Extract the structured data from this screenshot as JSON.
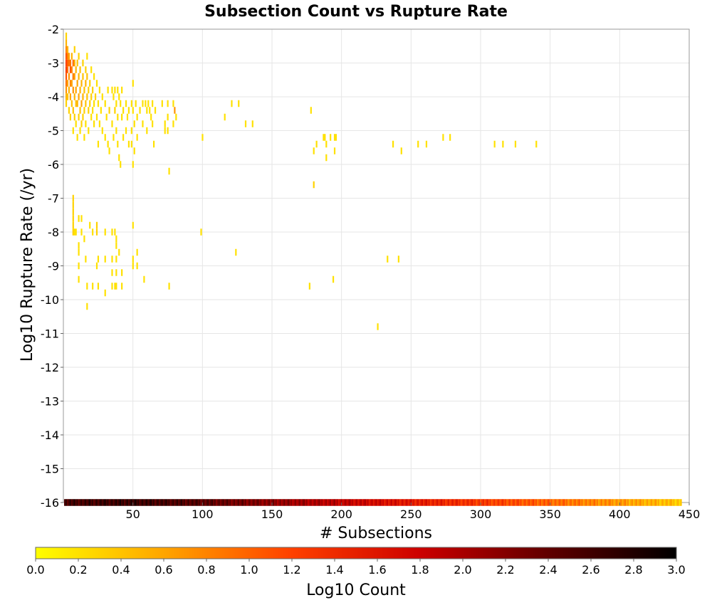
{
  "chart_data": {
    "type": "heatmap",
    "title": "Subsection Count vs Rupture Rate",
    "xlabel": "# Subsections",
    "ylabel": "Log10 Rupture Rate (/yr)",
    "xlim": [
      0,
      450
    ],
    "ylim": [
      -16,
      -2
    ],
    "x_ticks": [
      50,
      100,
      150,
      200,
      250,
      300,
      350,
      400,
      450
    ],
    "y_ticks": [
      -2,
      -3,
      -4,
      -5,
      -6,
      -7,
      -8,
      -9,
      -10,
      -11,
      -12,
      -13,
      -14,
      -15,
      -16
    ],
    "grid": true,
    "colorbar": {
      "label": "Log10 Count",
      "range": [
        0.0,
        3.0
      ],
      "ticks": [
        "0.0",
        "0.2",
        "0.4",
        "0.6",
        "0.8",
        "1.0",
        "1.2",
        "1.4",
        "1.6",
        "1.8",
        "2.0",
        "2.2",
        "2.4",
        "2.6",
        "2.8",
        "3.0"
      ],
      "colors": [
        "#ffff00",
        "#ffa500",
        "#ff4000",
        "#cc0000",
        "#600000",
        "#000000"
      ]
    },
    "bin_width": 1,
    "bin_height": 0.2,
    "upper_cells": [
      [
        2,
        -2.2,
        0.3
      ],
      [
        2,
        -2.4,
        0.5
      ],
      [
        2,
        -2.6,
        0.8
      ],
      [
        2,
        -2.8,
        1.1
      ],
      [
        2,
        -3.0,
        1.2
      ],
      [
        2,
        -3.2,
        1.3
      ],
      [
        2,
        -3.4,
        1.1
      ],
      [
        2,
        -3.6,
        0.9
      ],
      [
        2,
        -3.8,
        0.7
      ],
      [
        2,
        -4.0,
        0.5
      ],
      [
        2,
        -4.2,
        0.3
      ],
      [
        3,
        -2.6,
        0.5
      ],
      [
        3,
        -2.8,
        0.8
      ],
      [
        3,
        -3.0,
        1.0
      ],
      [
        3,
        -3.2,
        0.9
      ],
      [
        3,
        -3.6,
        0.6
      ],
      [
        3,
        -4.0,
        0.4
      ],
      [
        4,
        -2.8,
        0.6
      ],
      [
        4,
        -3.0,
        0.9
      ],
      [
        4,
        -3.4,
        0.7
      ],
      [
        4,
        -3.8,
        0.5
      ],
      [
        4,
        -4.4,
        0.3
      ],
      [
        5,
        -3.0,
        0.9
      ],
      [
        5,
        -3.2,
        1.1
      ],
      [
        5,
        -3.6,
        0.8
      ],
      [
        5,
        -4.0,
        0.6
      ],
      [
        5,
        -4.6,
        0.3
      ],
      [
        6,
        -2.8,
        0.5
      ],
      [
        6,
        -3.2,
        0.8
      ],
      [
        6,
        -3.6,
        0.6
      ],
      [
        6,
        -4.2,
        0.4
      ],
      [
        7,
        -3.0,
        1.0
      ],
      [
        7,
        -3.4,
        0.9
      ],
      [
        7,
        -3.8,
        0.7
      ],
      [
        7,
        -4.4,
        0.4
      ],
      [
        7,
        -5.0,
        0.2
      ],
      [
        8,
        -2.6,
        0.3
      ],
      [
        8,
        -3.0,
        0.5
      ],
      [
        8,
        -3.4,
        0.6
      ],
      [
        8,
        -4.0,
        0.5
      ],
      [
        8,
        -4.6,
        0.3
      ],
      [
        9,
        -3.2,
        0.5
      ],
      [
        9,
        -3.8,
        0.6
      ],
      [
        9,
        -4.2,
        0.4
      ],
      [
        9,
        -4.8,
        0.2
      ],
      [
        10,
        -3.0,
        0.4
      ],
      [
        10,
        -3.6,
        0.6
      ],
      [
        10,
        -4.2,
        0.5
      ],
      [
        10,
        -5.2,
        0.2
      ],
      [
        11,
        -2.8,
        0.3
      ],
      [
        11,
        -3.4,
        0.5
      ],
      [
        11,
        -4.0,
        0.6
      ],
      [
        11,
        -4.6,
        0.3
      ],
      [
        12,
        -3.2,
        0.4
      ],
      [
        12,
        -3.8,
        0.5
      ],
      [
        12,
        -4.4,
        0.4
      ],
      [
        12,
        -5.0,
        0.2
      ],
      [
        13,
        -3.6,
        0.5
      ],
      [
        13,
        -4.2,
        0.6
      ],
      [
        13,
        -4.8,
        0.3
      ],
      [
        14,
        -3.0,
        0.3
      ],
      [
        14,
        -3.4,
        0.4
      ],
      [
        14,
        -4.0,
        0.5
      ],
      [
        14,
        -4.6,
        0.3
      ],
      [
        15,
        -3.8,
        0.4
      ],
      [
        15,
        -4.4,
        0.3
      ],
      [
        15,
        -5.2,
        0.2
      ],
      [
        16,
        -3.2,
        0.3
      ],
      [
        16,
        -3.6,
        0.5
      ],
      [
        16,
        -4.2,
        0.4
      ],
      [
        16,
        -4.8,
        0.2
      ],
      [
        17,
        -2.8,
        0.2
      ],
      [
        17,
        -3.4,
        0.4
      ],
      [
        17,
        -4.0,
        0.4
      ],
      [
        18,
        -3.8,
        0.3
      ],
      [
        18,
        -4.4,
        0.3
      ],
      [
        18,
        -5.0,
        0.2
      ],
      [
        19,
        -3.6,
        0.3
      ],
      [
        19,
        -4.2,
        0.3
      ],
      [
        20,
        -3.2,
        0.2
      ],
      [
        20,
        -4.0,
        0.3
      ],
      [
        20,
        -4.6,
        0.2
      ],
      [
        21,
        -3.8,
        0.3
      ],
      [
        21,
        -4.4,
        0.2
      ],
      [
        22,
        -3.4,
        0.2
      ],
      [
        22,
        -4.2,
        0.2
      ],
      [
        22,
        -4.8,
        0.2
      ],
      [
        23,
        -4.0,
        0.3
      ],
      [
        24,
        -3.6,
        0.2
      ],
      [
        24,
        -4.6,
        0.2
      ],
      [
        25,
        -4.2,
        0.2
      ],
      [
        25,
        -5.4,
        0.2
      ],
      [
        26,
        -3.8,
        0.2
      ],
      [
        26,
        -4.8,
        0.2
      ],
      [
        27,
        -4.4,
        0.2
      ],
      [
        28,
        -4.0,
        0.2
      ],
      [
        28,
        -5.0,
        0.2
      ],
      [
        30,
        -4.2,
        0.2
      ],
      [
        30,
        -5.2,
        0.2
      ],
      [
        31,
        -4.6,
        0.2
      ],
      [
        32,
        -3.8,
        0.2
      ],
      [
        32,
        -5.4,
        0.2
      ],
      [
        33,
        -4.4,
        0.3
      ],
      [
        33,
        -5.6,
        0.2
      ],
      [
        35,
        -3.8,
        0.2
      ],
      [
        35,
        -4.8,
        0.2
      ],
      [
        36,
        -4.0,
        0.2
      ],
      [
        36,
        -5.2,
        0.2
      ],
      [
        37,
        -3.8,
        0.2
      ],
      [
        37,
        -4.4,
        0.3
      ],
      [
        38,
        -4.2,
        0.2
      ],
      [
        38,
        -5.0,
        0.2
      ],
      [
        39,
        -3.8,
        0.2
      ],
      [
        39,
        -4.6,
        0.2
      ],
      [
        39,
        -5.4,
        0.2
      ],
      [
        40,
        -4.0,
        0.2
      ],
      [
        40,
        -5.8,
        0.2
      ],
      [
        41,
        -4.2,
        0.2
      ],
      [
        41,
        -6.0,
        0.2
      ],
      [
        42,
        -3.8,
        0.2
      ],
      [
        42,
        -4.6,
        0.2
      ],
      [
        43,
        -4.4,
        0.2
      ],
      [
        43,
        -5.2,
        0.2
      ],
      [
        45,
        -4.2,
        0.2
      ],
      [
        45,
        -5.0,
        0.2
      ],
      [
        46,
        -4.6,
        0.2
      ],
      [
        47,
        -4.4,
        0.2
      ],
      [
        47,
        -5.4,
        0.2
      ],
      [
        49,
        -4.2,
        0.2
      ],
      [
        49,
        -5.0,
        0.2
      ],
      [
        49,
        -5.4,
        0.2
      ],
      [
        50,
        -3.6,
        0.2
      ],
      [
        50,
        -4.4,
        0.2
      ],
      [
        50,
        -6.0,
        0.2
      ],
      [
        51,
        -4.8,
        0.2
      ],
      [
        51,
        -5.6,
        0.2
      ],
      [
        52,
        -4.2,
        0.2
      ],
      [
        53,
        -4.6,
        0.2
      ],
      [
        53,
        -5.2,
        0.2
      ],
      [
        55,
        -4.4,
        0.2
      ],
      [
        57,
        -4.2,
        0.2
      ],
      [
        57,
        -4.8,
        0.2
      ],
      [
        59,
        -4.2,
        0.2
      ],
      [
        60,
        -4.4,
        0.2
      ],
      [
        60,
        -5.0,
        0.2
      ],
      [
        61,
        -4.2,
        0.2
      ],
      [
        62,
        -4.4,
        0.2
      ],
      [
        63,
        -4.6,
        0.2
      ],
      [
        64,
        -4.2,
        0.2
      ],
      [
        64,
        -4.8,
        0.2
      ],
      [
        65,
        -5.4,
        0.2
      ],
      [
        66,
        -4.4,
        0.2
      ],
      [
        71,
        -4.2,
        0.2
      ],
      [
        73,
        -4.8,
        0.2
      ],
      [
        73,
        -5.0,
        0.2
      ],
      [
        75,
        -4.2,
        0.2
      ],
      [
        75,
        -4.6,
        0.2
      ],
      [
        75,
        -5.0,
        0.2
      ],
      [
        76,
        -6.2,
        0.2
      ],
      [
        79,
        -4.2,
        0.2
      ],
      [
        79,
        -4.8,
        0.2
      ],
      [
        80,
        -4.4,
        0.7
      ],
      [
        81,
        -4.6,
        0.2
      ],
      [
        100,
        -5.2,
        0.2
      ],
      [
        116,
        -4.6,
        0.2
      ],
      [
        121,
        -4.2,
        0.2
      ],
      [
        126,
        -4.2,
        0.2
      ],
      [
        131,
        -4.8,
        0.2
      ],
      [
        136,
        -4.8,
        0.2
      ],
      [
        178,
        -4.4,
        0.2
      ],
      [
        180,
        -5.6,
        0.2
      ],
      [
        180,
        -6.6,
        0.3
      ],
      [
        182,
        -5.4,
        0.2
      ],
      [
        187,
        -5.2,
        0.2
      ],
      [
        188,
        -5.2,
        0.2
      ],
      [
        189,
        -5.4,
        0.2
      ],
      [
        189,
        -5.8,
        0.2
      ],
      [
        192,
        -5.2,
        0.2
      ],
      [
        195,
        -5.2,
        0.2
      ],
      [
        195,
        -5.6,
        0.2
      ],
      [
        196,
        -5.2,
        0.2
      ],
      [
        237,
        -5.4,
        0.2
      ],
      [
        243,
        -5.6,
        0.2
      ],
      [
        255,
        -5.4,
        0.2
      ],
      [
        261,
        -5.4,
        0.2
      ],
      [
        273,
        -5.2,
        0.2
      ],
      [
        278,
        -5.2,
        0.2
      ],
      [
        310,
        -5.4,
        0.2
      ],
      [
        316,
        -5.4,
        0.2
      ],
      [
        325,
        -5.4,
        0.2
      ],
      [
        340,
        -5.4,
        0.2
      ]
    ],
    "mid_cells": [
      [
        7,
        -7.8,
        0.3
      ],
      [
        7,
        -8.0,
        0.3
      ],
      [
        7,
        -7.6,
        0.3
      ],
      [
        7,
        -7.4,
        0.3
      ],
      [
        7,
        -7.2,
        0.3
      ],
      [
        7,
        -7.0,
        0.3
      ],
      [
        8,
        -8.0,
        0.2
      ],
      [
        9,
        -8.0,
        0.2
      ],
      [
        11,
        -7.6,
        0.2
      ],
      [
        11,
        -8.4,
        0.2
      ],
      [
        11,
        -8.6,
        0.2
      ],
      [
        11,
        -9.0,
        0.2
      ],
      [
        11,
        -9.4,
        0.2
      ],
      [
        13,
        -7.6,
        0.2
      ],
      [
        13,
        -8.0,
        0.2
      ],
      [
        15,
        -8.2,
        0.2
      ],
      [
        16,
        -8.8,
        0.2
      ],
      [
        17,
        -9.6,
        0.2
      ],
      [
        17,
        -10.2,
        0.2
      ],
      [
        19,
        -7.8,
        0.2
      ],
      [
        21,
        -8.0,
        0.2
      ],
      [
        21,
        -9.6,
        0.2
      ],
      [
        24,
        -7.8,
        0.3
      ],
      [
        24,
        -8.0,
        0.3
      ],
      [
        24,
        -9.0,
        0.2
      ],
      [
        25,
        -8.8,
        0.2
      ],
      [
        25,
        -9.6,
        0.2
      ],
      [
        30,
        -8.0,
        0.2
      ],
      [
        30,
        -8.8,
        0.2
      ],
      [
        30,
        -9.8,
        0.2
      ],
      [
        35,
        -8.0,
        0.2
      ],
      [
        35,
        -8.8,
        0.2
      ],
      [
        35,
        -9.2,
        0.2
      ],
      [
        35,
        -9.6,
        0.2
      ],
      [
        37,
        -8.0,
        0.2
      ],
      [
        37,
        -9.6,
        0.2
      ],
      [
        38,
        -8.2,
        0.2
      ],
      [
        38,
        -8.4,
        0.2
      ],
      [
        38,
        -8.8,
        0.2
      ],
      [
        38,
        -9.2,
        0.2
      ],
      [
        38,
        -9.6,
        0.2
      ],
      [
        40,
        -8.6,
        0.2
      ],
      [
        42,
        -9.2,
        0.2
      ],
      [
        42,
        -9.6,
        0.2
      ],
      [
        50,
        -7.8,
        0.2
      ],
      [
        50,
        -8.8,
        0.2
      ],
      [
        50,
        -9.0,
        0.2
      ],
      [
        53,
        -8.6,
        0.2
      ],
      [
        53,
        -9.0,
        0.2
      ],
      [
        58,
        -9.4,
        0.2
      ],
      [
        76,
        -9.6,
        0.2
      ],
      [
        99,
        -8.0,
        0.2
      ],
      [
        124,
        -8.6,
        0.2
      ],
      [
        177,
        -9.6,
        0.2
      ],
      [
        194,
        -9.4,
        0.2
      ],
      [
        226,
        -10.8,
        0.2
      ],
      [
        233,
        -8.8,
        0.2
      ],
      [
        241,
        -8.8,
        0.2
      ]
    ],
    "bottom_row": {
      "y": -16,
      "x_range": [
        1,
        444
      ],
      "log10_count_profile": [
        [
          1,
          2.6
        ],
        [
          50,
          2.7
        ],
        [
          100,
          2.5
        ],
        [
          150,
          2.2
        ],
        [
          200,
          1.9
        ],
        [
          250,
          1.6
        ],
        [
          300,
          1.3
        ],
        [
          350,
          1.0
        ],
        [
          400,
          0.7
        ],
        [
          444,
          0.4
        ]
      ]
    }
  }
}
